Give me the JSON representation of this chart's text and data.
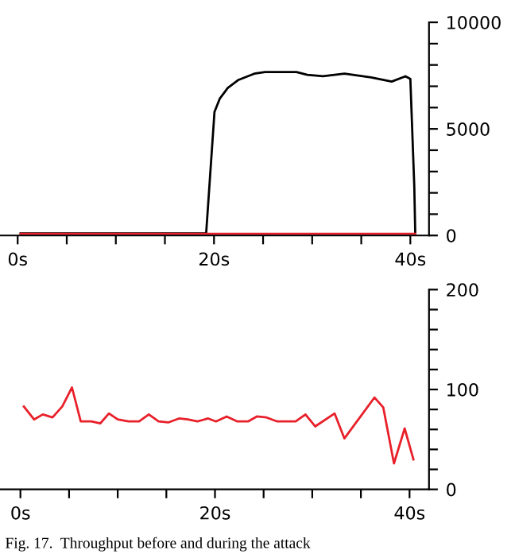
{
  "chart_data": [
    {
      "type": "line",
      "xlim": [
        -1.8,
        41.9
      ],
      "ylim": [
        0,
        10000
      ],
      "xticks": [
        {
          "value": 0,
          "label": "0s"
        },
        {
          "value": 5,
          "label": null
        },
        {
          "value": 10,
          "label": null
        },
        {
          "value": 15,
          "label": null
        },
        {
          "value": 20,
          "label": "20s"
        },
        {
          "value": 25,
          "label": null
        },
        {
          "value": 30,
          "label": null
        },
        {
          "value": 35,
          "label": null
        },
        {
          "value": 40,
          "label": "40s"
        }
      ],
      "yticks": [
        0,
        {
          "value": 1000,
          "label": null
        },
        {
          "value": 2000,
          "label": null
        },
        {
          "value": 3000,
          "label": null
        },
        {
          "value": 4000,
          "label": null
        },
        5000,
        {
          "value": 6000,
          "label": null
        },
        {
          "value": 7000,
          "label": null
        },
        {
          "value": 8000,
          "label": null
        },
        {
          "value": 9000,
          "label": null
        },
        10000
      ],
      "grid": false,
      "marker": "none",
      "line_style": "solid",
      "series": [
        {
          "color": "#000000",
          "x": [
            0.3,
            19.2,
            20.05,
            20.6,
            21.4,
            22.5,
            24.1,
            25.2,
            28.4,
            29.5,
            31.1,
            33.3,
            36.0,
            38.1,
            39.5,
            40.0,
            40.4,
            40.5
          ],
          "values": [
            100,
            100,
            5800,
            6430,
            6920,
            7300,
            7590,
            7670,
            7670,
            7540,
            7470,
            7590,
            7420,
            7220,
            7470,
            7350,
            2330,
            100
          ]
        },
        {
          "color": "#e8202a",
          "x": [
            0.3,
            10,
            19.2,
            20.5,
            30,
            40.5
          ],
          "values": [
            80,
            80,
            80,
            80,
            80,
            80
          ]
        }
      ]
    },
    {
      "type": "line",
      "xlim": [
        -2.1,
        42.0
      ],
      "ylim": [
        0,
        200
      ],
      "xticks": [
        {
          "value": 0,
          "label": "0s"
        },
        {
          "value": 5,
          "label": null
        },
        {
          "value": 10,
          "label": null
        },
        {
          "value": 15,
          "label": null
        },
        {
          "value": 20,
          "label": "20s"
        },
        {
          "value": 25,
          "label": null
        },
        {
          "value": 30,
          "label": null
        },
        {
          "value": 35,
          "label": null
        },
        {
          "value": 40,
          "label": "40s"
        }
      ],
      "yticks": [
        0,
        {
          "value": 20,
          "label": null
        },
        {
          "value": 40,
          "label": null
        },
        {
          "value": 60,
          "label": null
        },
        {
          "value": 80,
          "label": null
        },
        100,
        {
          "value": 120,
          "label": null
        },
        {
          "value": 140,
          "label": null
        },
        {
          "value": 160,
          "label": null
        },
        {
          "value": 180,
          "label": null
        },
        200
      ],
      "grid": false,
      "marker": "none",
      "line_style": "solid",
      "annotations": [
        "Fig. 17.  Throughput before and during the attack"
      ],
      "series": [
        {
          "color": "#e8202a",
          "x": [
            0.35,
            1.4,
            2.3,
            3.3,
            4.3,
            5.3,
            6.2,
            7.3,
            8.2,
            9.1,
            10.0,
            11.1,
            12.2,
            13.2,
            14.2,
            15.2,
            16.3,
            17.2,
            18.2,
            19.3,
            20.1,
            21.2,
            22.3,
            23.4,
            24.3,
            25.3,
            26.4,
            28.3,
            29.3,
            30.3,
            32.3,
            33.3,
            36.4,
            37.3,
            38.4,
            39.5,
            40.4
          ],
          "values": [
            83,
            70,
            75,
            72,
            83,
            102,
            68,
            68,
            66,
            76,
            70,
            68,
            68,
            75,
            68,
            67,
            71,
            70,
            68,
            71,
            68,
            73,
            68,
            68,
            73,
            72,
            68,
            68,
            75,
            63,
            76,
            51,
            92,
            82,
            26,
            61,
            30
          ]
        }
      ]
    }
  ]
}
